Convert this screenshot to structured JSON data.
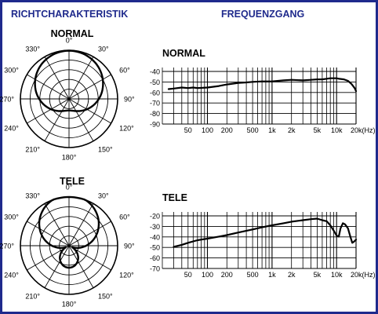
{
  "header": {
    "left_title": "RICHTCHARAKTERISTIK",
    "right_title": "FREQUENZGANG"
  },
  "colors": {
    "frame": "#1f2a8c",
    "header_text": "#1f2a8c",
    "ink": "#000000",
    "background": "#ffffff"
  },
  "polar_plots": [
    {
      "title": "NORMAL",
      "angle_labels": [
        "0°",
        "30°",
        "60°",
        "90°",
        "120°",
        "150°",
        "180°",
        "210°",
        "240°",
        "270°",
        "300°",
        "330°"
      ],
      "pattern": "cardioid"
    },
    {
      "title": "TELE",
      "angle_labels": [
        "0°",
        "30°",
        "60°",
        "90°",
        "120°",
        "150°",
        "180°",
        "210°",
        "240°",
        "270°",
        "300°",
        "330°"
      ],
      "pattern": "hypercardioid"
    }
  ],
  "response_plots": [
    {
      "title": "NORMAL",
      "y_ticks": [
        "-40",
        "-50",
        "-60",
        "-70",
        "-80",
        "-90"
      ],
      "x_ticks": [
        "50",
        "100",
        "200",
        "500",
        "1k",
        "2k",
        "5k",
        "10k",
        "20k(Hz)"
      ],
      "x_tick_freqs": [
        50,
        100,
        200,
        500,
        1000,
        2000,
        5000,
        10000,
        20000
      ],
      "ylim": [
        -90,
        -35
      ],
      "curve": [
        [
          25,
          -56
        ],
        [
          30,
          -55.5
        ],
        [
          40,
          -54.5
        ],
        [
          50,
          -55
        ],
        [
          60,
          -54.5
        ],
        [
          70,
          -55
        ],
        [
          100,
          -54.5
        ],
        [
          150,
          -53
        ],
        [
          200,
          -51.5
        ],
        [
          300,
          -50
        ],
        [
          400,
          -49.5
        ],
        [
          500,
          -49
        ],
        [
          700,
          -48.5
        ],
        [
          1000,
          -48.5
        ],
        [
          1500,
          -47.5
        ],
        [
          2000,
          -47
        ],
        [
          3000,
          -47.5
        ],
        [
          4000,
          -47
        ],
        [
          5000,
          -46.5
        ],
        [
          6000,
          -46.5
        ],
        [
          8000,
          -45.5
        ],
        [
          10000,
          -45.5
        ],
        [
          11000,
          -46
        ],
        [
          13000,
          -46.5
        ],
        [
          15000,
          -48
        ],
        [
          17000,
          -51
        ],
        [
          19000,
          -55
        ],
        [
          20000,
          -58
        ]
      ]
    },
    {
      "title": "TELE",
      "y_ticks": [
        "-20",
        "-30",
        "-40",
        "-50",
        "-60",
        "-70"
      ],
      "x_ticks": [
        "50",
        "100",
        "200",
        "500",
        "1k",
        "2k",
        "5k",
        "10k",
        "20k(Hz)"
      ],
      "x_tick_freqs": [
        50,
        100,
        200,
        500,
        1000,
        2000,
        5000,
        10000,
        20000
      ],
      "ylim": [
        -70,
        -15
      ],
      "curve": [
        [
          30,
          -49
        ],
        [
          40,
          -47
        ],
        [
          50,
          -45
        ],
        [
          70,
          -42.5
        ],
        [
          100,
          -41
        ],
        [
          150,
          -39
        ],
        [
          200,
          -37.5
        ],
        [
          300,
          -35
        ],
        [
          500,
          -32
        ],
        [
          700,
          -30
        ],
        [
          1000,
          -28
        ],
        [
          1500,
          -26
        ],
        [
          2000,
          -24.5
        ],
        [
          3000,
          -23
        ],
        [
          4000,
          -22
        ],
        [
          5000,
          -21.5
        ],
        [
          6000,
          -23
        ],
        [
          7000,
          -24
        ],
        [
          8000,
          -28
        ],
        [
          9000,
          -33
        ],
        [
          10000,
          -38
        ],
        [
          10800,
          -39
        ],
        [
          11500,
          -31
        ],
        [
          12500,
          -26
        ],
        [
          13500,
          -27
        ],
        [
          15000,
          -31
        ],
        [
          16500,
          -40
        ],
        [
          17500,
          -45
        ],
        [
          18500,
          -44
        ],
        [
          20000,
          -42
        ]
      ]
    }
  ]
}
